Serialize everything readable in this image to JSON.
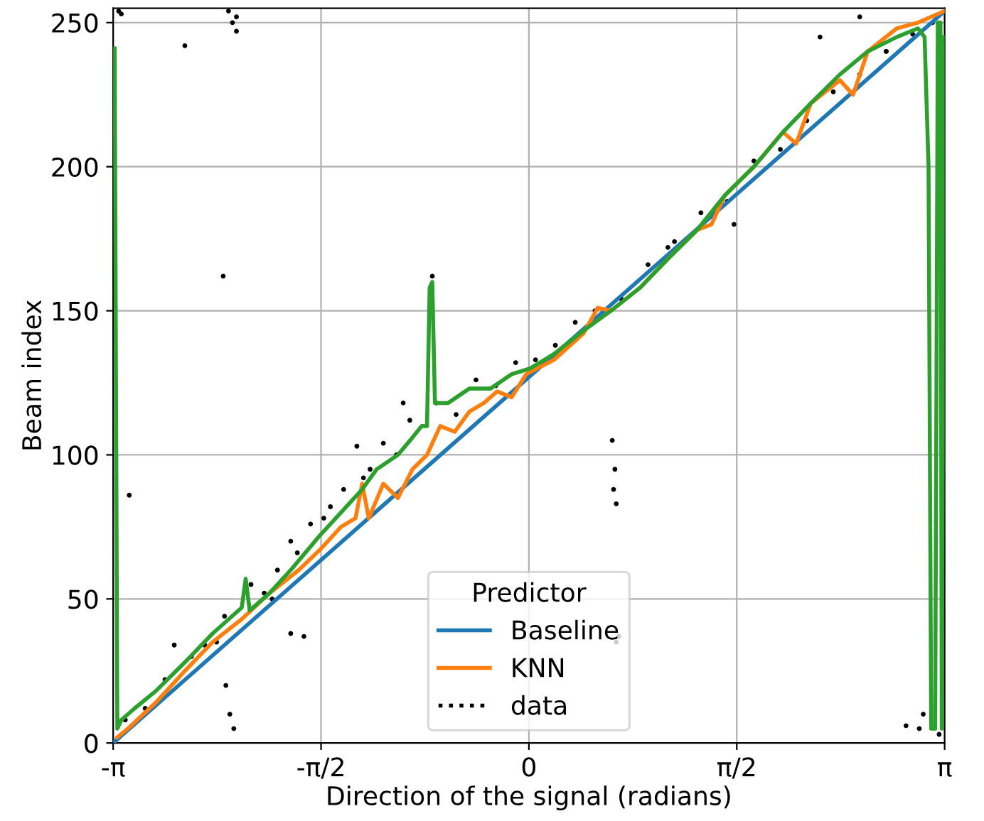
{
  "chart_data": {
    "type": "line",
    "xlabel": "Direction of the signal (radians)",
    "ylabel": "Beam index",
    "legend_title": "Predictor",
    "legend": "bottom",
    "grid": true,
    "xlim": [
      -3.14159,
      3.14159
    ],
    "ylim": [
      0,
      255
    ],
    "xticks": [
      {
        "value": -3.14159,
        "label": "-π"
      },
      {
        "value": -1.5708,
        "label": "-π/2"
      },
      0,
      {
        "value": 1.5708,
        "label": "π/2"
      },
      {
        "value": 3.14159,
        "label": "π"
      }
    ],
    "yticks": [
      0,
      50,
      100,
      150,
      200,
      250
    ],
    "series": [
      {
        "name": "Baseline",
        "color": "#1f77b4",
        "x": [
          -3.14159,
          3.14159
        ],
        "values": [
          0,
          254
        ]
      },
      {
        "name": "KNN",
        "color": "#ff7f0e",
        "x": [
          -3.11,
          -3.03,
          -2.82,
          -2.6,
          -2.39,
          -2.17,
          -1.96,
          -1.74,
          -1.58,
          -1.42,
          -1.31,
          -1.26,
          -1.21,
          -1.1,
          -0.99,
          -0.88,
          -0.77,
          -0.67,
          -0.56,
          -0.45,
          -0.34,
          -0.24,
          -0.13,
          -0.02,
          0.19,
          0.41,
          0.52,
          0.62,
          0.84,
          1.05,
          1.27,
          1.38,
          1.48,
          1.7,
          1.92,
          2.02,
          2.13,
          2.35,
          2.45,
          2.56,
          2.78,
          2.94,
          3.14
        ],
        "values": [
          2,
          5,
          14,
          25,
          35,
          43,
          52,
          60,
          67,
          75,
          78,
          90,
          78,
          90,
          85,
          95,
          100,
          110,
          108,
          115,
          118,
          122,
          120,
          128,
          133,
          142,
          151,
          150,
          158,
          168,
          178,
          180,
          190,
          200,
          212,
          208,
          222,
          230,
          225,
          240,
          248,
          250,
          254
        ]
      },
      {
        "color": "#2ca02c",
        "x": [
          -3.13,
          -3.11,
          -3.08,
          -2.98,
          -2.82,
          -2.6,
          -2.39,
          -2.17,
          -2.14,
          -2.11,
          -1.96,
          -1.8,
          -1.69,
          -1.58,
          -1.42,
          -1.26,
          -1.15,
          -0.99,
          -0.88,
          -0.81,
          -0.77,
          -0.75,
          -0.73,
          -0.71,
          -0.61,
          -0.45,
          -0.29,
          -0.13,
          0.01,
          0.19,
          0.41,
          0.62,
          0.84,
          1.05,
          1.27,
          1.48,
          1.7,
          1.92,
          2.13,
          2.35,
          2.56,
          2.78,
          2.94,
          2.99,
          3.02,
          3.04,
          3.07,
          3.09,
          3.11,
          3.12,
          3.14
        ],
        "values": [
          241,
          5,
          8,
          12,
          18,
          28,
          38,
          47,
          57,
          46,
          52,
          60,
          66,
          72,
          80,
          88,
          95,
          100,
          106,
          110,
          110,
          158,
          160,
          118,
          118,
          123,
          123,
          128,
          130,
          135,
          143,
          150,
          158,
          168,
          178,
          190,
          200,
          212,
          222,
          232,
          240,
          245,
          248,
          245,
          200,
          5,
          5,
          250,
          250,
          5,
          245
        ]
      },
      {
        "name": "data",
        "type": "scatter",
        "color": "#000000",
        "x": [
          -3.1,
          -3.08,
          -2.6,
          -2.27,
          -2.21,
          -2.24,
          -2.21,
          -2.31,
          -3.02,
          -2.68,
          -2.36,
          -2.26,
          -2.29,
          -2.23,
          -1.94,
          -1.7,
          -1.8,
          -0.73,
          0.63,
          0.65,
          0.64,
          0.66,
          0.66,
          0.68,
          2.95,
          2.98,
          3.1,
          2.85,
          2.2,
          2.5,
          2.7,
          1.55,
          1.05,
          -1.3,
          -1.2,
          -0.95,
          -1.5,
          -1.8,
          -3.05,
          -2.9,
          -2.75,
          -2.55,
          -2.45,
          -2.3,
          -2.1,
          -2.0,
          -1.9,
          -1.75,
          -1.65,
          -1.55,
          -1.4,
          -1.25,
          -1.1,
          -1.0,
          -0.9,
          -0.7,
          -0.55,
          -0.4,
          -0.25,
          -0.1,
          0.05,
          0.2,
          0.35,
          0.5,
          0.7,
          0.9,
          1.1,
          1.3,
          1.5,
          1.7,
          1.9,
          2.1,
          2.3,
          2.5,
          2.7,
          2.9,
          3.05
        ],
        "values": [
          254,
          253,
          242,
          254,
          252,
          250,
          247,
          162,
          86,
          34,
          35,
          10,
          20,
          5,
          50,
          37,
          38,
          162,
          105,
          95,
          88,
          83,
          35,
          37,
          5,
          10,
          3,
          6,
          245,
          252,
          240,
          180,
          172,
          103,
          95,
          118,
          82,
          70,
          8,
          12,
          22,
          30,
          34,
          44,
          55,
          52,
          60,
          66,
          76,
          78,
          88,
          92,
          104,
          100,
          112,
          118,
          114,
          126,
          124,
          132,
          133,
          138,
          146,
          150,
          154,
          166,
          174,
          184,
          188,
          202,
          206,
          216,
          226,
          232,
          240,
          246,
          250
        ]
      }
    ]
  }
}
